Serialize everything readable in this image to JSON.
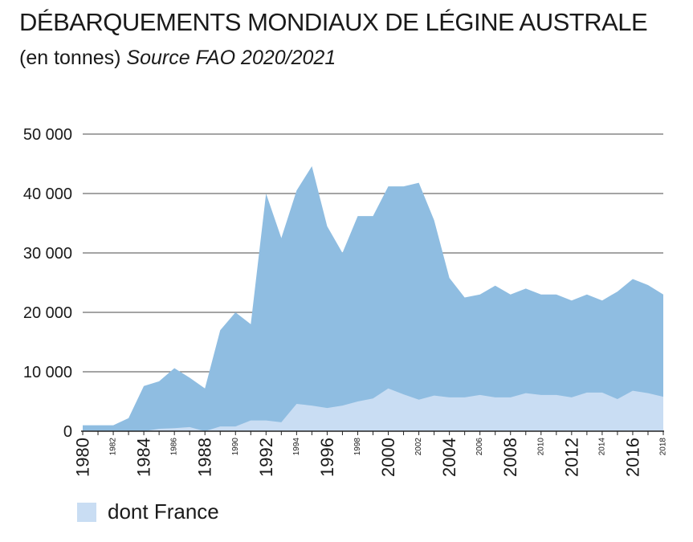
{
  "header": {
    "title": "DÉBARQUEMENTS MONDIAUX DE LÉGINE AUSTRALE",
    "subtitle_plain": "(en tonnes)",
    "subtitle_source": "Source FAO 2020/2021"
  },
  "legend": {
    "label": "dont France"
  },
  "colors": {
    "total": "#8fbde1",
    "france": "#c9ddf3",
    "grid": "#6e6e6e",
    "axis": "#222222"
  },
  "chart_data": {
    "type": "area",
    "title": "DÉBARQUEMENTS MONDIAUX DE LÉGINE AUSTRALE",
    "subtitle": "(en tonnes) Source FAO 2020/2021",
    "ylim": [
      0,
      50000
    ],
    "grid": true,
    "legend_position": "bottom-left",
    "y_ticks": [
      0,
      10000,
      20000,
      30000,
      40000,
      50000
    ],
    "y_tick_labels": [
      "0",
      "10 000",
      "20 000",
      "30 000",
      "40 000",
      "50 000"
    ],
    "x_tick_labels": [
      "1980",
      "1982",
      "1984",
      "1986",
      "1988",
      "1990",
      "1992",
      "1994",
      "1996",
      "1998",
      "2000",
      "2002",
      "2004",
      "2006",
      "2008",
      "2010",
      "2012",
      "2014",
      "2016",
      "2018"
    ],
    "x": [
      1980,
      1981,
      1982,
      1983,
      1984,
      1985,
      1986,
      1987,
      1988,
      1989,
      1990,
      1991,
      1992,
      1993,
      1994,
      1995,
      1996,
      1997,
      1998,
      1999,
      2000,
      2001,
      2002,
      2003,
      2004,
      2005,
      2006,
      2007,
      2008,
      2009,
      2010,
      2011,
      2012,
      2013,
      2014,
      2015,
      2016,
      2017,
      2018
    ],
    "series": [
      {
        "values": [
          1000,
          1000,
          1000,
          2200,
          7600,
          8400,
          10600,
          9000,
          7200,
          17000,
          20000,
          18000,
          40000,
          32500,
          40500,
          44600,
          34500,
          30000,
          36200,
          36200,
          41200,
          41200,
          41800,
          35500,
          25800,
          22500,
          23000,
          24500,
          23000,
          24000,
          23000,
          23000,
          22000,
          23000,
          22000,
          23500,
          25600,
          24600,
          23000
        ]
      },
      {
        "name": "dont France",
        "values": [
          0,
          0,
          0,
          0,
          0,
          400,
          500,
          700,
          0,
          800,
          800,
          1800,
          1800,
          1500,
          4600,
          4300,
          3900,
          4300,
          5000,
          5500,
          7200,
          6200,
          5300,
          6000,
          5700,
          5700,
          6100,
          5700,
          5700,
          6400,
          6100,
          6100,
          5700,
          6500,
          6500,
          5400,
          6800,
          6400,
          5800
        ]
      }
    ]
  }
}
